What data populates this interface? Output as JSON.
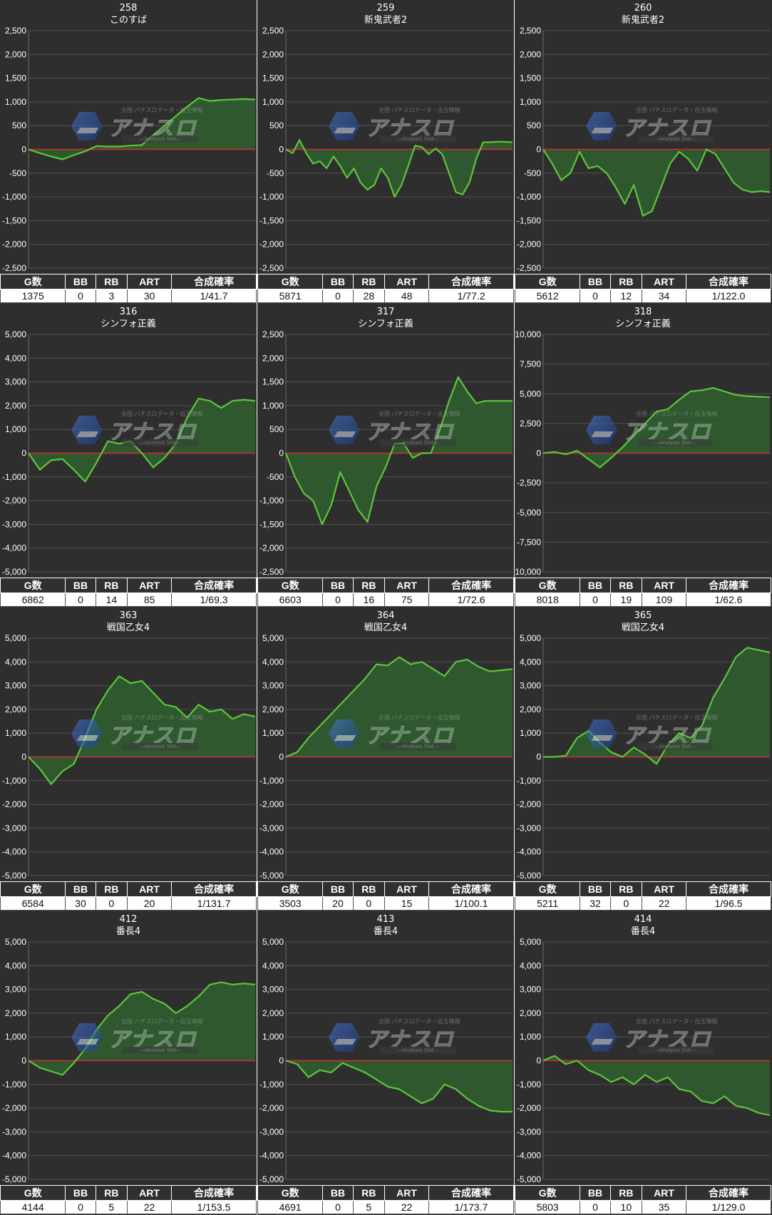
{
  "watermark": {
    "brand": "アナスロ",
    "sub": "全国 パチスロデータ・出玉情報",
    "tagline": "—Analysis Slot—"
  },
  "colors": {
    "background": "#2e2e2e",
    "grid": "#505050",
    "zero_line": "#d03030",
    "line": "#5cc63a",
    "fill": "#2f5f2f"
  },
  "table_headers": [
    "G数",
    "BB",
    "RB",
    "ART",
    "合成確率"
  ],
  "chart_data": [
    {
      "type": "area",
      "number": "258",
      "name": "このすば",
      "ylim": [
        -2500,
        2500
      ],
      "yticks": [
        "2,500",
        "2,000",
        "1,500",
        "1,000",
        "500",
        "0",
        "-500",
        "-1,000",
        "-1,500",
        "-2,000",
        "-2,500"
      ],
      "x": [
        0,
        5,
        10,
        15,
        20,
        25,
        30,
        35,
        40,
        45,
        50,
        55,
        60,
        65,
        70,
        75,
        80,
        85,
        90,
        95,
        100
      ],
      "y": [
        0,
        -80,
        -150,
        -210,
        -120,
        -40,
        70,
        60,
        60,
        80,
        90,
        300,
        500,
        700,
        900,
        1080,
        1020,
        1040,
        1050,
        1060,
        1050
      ],
      "stats": {
        "g": "1375",
        "bb": "0",
        "rb": "3",
        "art": "30",
        "prob": "1/41.7"
      }
    },
    {
      "type": "area",
      "number": "259",
      "name": "新鬼武者2",
      "ylim": [
        -2500,
        2500
      ],
      "yticks": [
        "2,500",
        "2,000",
        "1,500",
        "1,000",
        "500",
        "0",
        "-500",
        "-1,000",
        "-1,500",
        "-2,000",
        "-2,500"
      ],
      "x": [
        0,
        3,
        6,
        9,
        12,
        15,
        18,
        21,
        24,
        27,
        30,
        33,
        36,
        39,
        42,
        45,
        48,
        51,
        54,
        57,
        60,
        63,
        66,
        69,
        72,
        75,
        78,
        81,
        84,
        87,
        90,
        93,
        96,
        100
      ],
      "y": [
        0,
        -80,
        200,
        -80,
        -300,
        -250,
        -400,
        -150,
        -350,
        -600,
        -400,
        -700,
        -850,
        -750,
        -400,
        -600,
        -1000,
        -750,
        -350,
        80,
        50,
        -100,
        20,
        -100,
        -500,
        -900,
        -950,
        -700,
        -200,
        150,
        150,
        160,
        160,
        150
      ],
      "stats": {
        "g": "5871",
        "bb": "0",
        "rb": "28",
        "art": "48",
        "prob": "1/77.2"
      }
    },
    {
      "type": "area",
      "number": "260",
      "name": "新鬼武者2",
      "ylim": [
        -2500,
        2500
      ],
      "yticks": [
        "2,500",
        "2,000",
        "1,500",
        "1,000",
        "500",
        "0",
        "-500",
        "-1,000",
        "-1,500",
        "-2,000",
        "-2,500"
      ],
      "x": [
        0,
        4,
        8,
        12,
        16,
        20,
        24,
        28,
        32,
        36,
        40,
        44,
        48,
        52,
        56,
        60,
        64,
        68,
        72,
        76,
        80,
        84,
        88,
        92,
        96,
        100
      ],
      "y": [
        0,
        -300,
        -650,
        -500,
        -50,
        -400,
        -350,
        -500,
        -800,
        -1150,
        -750,
        -1400,
        -1300,
        -800,
        -300,
        -50,
        -200,
        -450,
        0,
        -100,
        -400,
        -700,
        -850,
        -900,
        -880,
        -900
      ],
      "stats": {
        "g": "5612",
        "bb": "0",
        "rb": "12",
        "art": "34",
        "prob": "1/122.0"
      }
    },
    {
      "type": "area",
      "number": "316",
      "name": "シンフォ正義",
      "ylim": [
        -5000,
        5000
      ],
      "yticks": [
        "5,000",
        "4,000",
        "3,000",
        "2,000",
        "1,000",
        "0",
        "-1,000",
        "-2,000",
        "-3,000",
        "-4,000",
        "-5,000"
      ],
      "x": [
        0,
        5,
        10,
        15,
        20,
        25,
        30,
        35,
        40,
        45,
        50,
        55,
        60,
        65,
        70,
        75,
        80,
        85,
        90,
        95,
        100
      ],
      "y": [
        0,
        -700,
        -300,
        -250,
        -700,
        -1200,
        -400,
        500,
        400,
        500,
        0,
        -600,
        -200,
        400,
        1500,
        2300,
        2200,
        1900,
        2200,
        2250,
        2200
      ],
      "stats": {
        "g": "6862",
        "bb": "0",
        "rb": "14",
        "art": "85",
        "prob": "1/69.3"
      }
    },
    {
      "type": "area",
      "number": "317",
      "name": "シンフォ正義",
      "ylim": [
        -2500,
        2500
      ],
      "yticks": [
        "2,500",
        "2,000",
        "1,500",
        "1,000",
        "500",
        "0",
        "-500",
        "-1,000",
        "-1,500",
        "-2,000",
        "-2,500"
      ],
      "x": [
        0,
        4,
        8,
        12,
        16,
        20,
        24,
        28,
        32,
        36,
        40,
        44,
        48,
        52,
        56,
        60,
        64,
        68,
        72,
        76,
        80,
        84,
        88,
        92,
        96,
        100
      ],
      "y": [
        0,
        -500,
        -850,
        -1000,
        -1500,
        -1100,
        -400,
        -800,
        -1200,
        -1450,
        -700,
        -300,
        200,
        200,
        -100,
        0,
        0,
        500,
        1100,
        1600,
        1300,
        1050,
        1100,
        1100,
        1100,
        1100
      ],
      "stats": {
        "g": "6603",
        "bb": "0",
        "rb": "16",
        "art": "75",
        "prob": "1/72.6"
      }
    },
    {
      "type": "area",
      "number": "318",
      "name": "シンフォ正義",
      "ylim": [
        -10000,
        10000
      ],
      "yticks": [
        "10,000",
        "7,500",
        "5,000",
        "2,500",
        "0",
        "-2,500",
        "-5,000",
        "-7,500",
        "-10,000"
      ],
      "x": [
        0,
        5,
        10,
        15,
        20,
        25,
        30,
        35,
        40,
        45,
        50,
        55,
        60,
        65,
        70,
        75,
        80,
        85,
        90,
        95,
        100
      ],
      "y": [
        0,
        100,
        -100,
        200,
        -500,
        -1200,
        -400,
        500,
        1500,
        2500,
        3500,
        3700,
        4500,
        5200,
        5300,
        5500,
        5200,
        4900,
        4800,
        4750,
        4700
      ],
      "stats": {
        "g": "8018",
        "bb": "0",
        "rb": "19",
        "art": "109",
        "prob": "1/62.6"
      }
    },
    {
      "type": "area",
      "number": "363",
      "name": "戦国乙女4",
      "ylim": [
        -5000,
        5000
      ],
      "yticks": [
        "5,000",
        "4,000",
        "3,000",
        "2,000",
        "1,000",
        "0",
        "-1,000",
        "-2,000",
        "-3,000",
        "-4,000",
        "-5,000"
      ],
      "x": [
        0,
        5,
        10,
        15,
        20,
        25,
        30,
        35,
        40,
        45,
        50,
        55,
        60,
        65,
        70,
        75,
        80,
        85,
        90,
        95,
        100
      ],
      "y": [
        0,
        -500,
        -1150,
        -600,
        -300,
        800,
        2000,
        2800,
        3400,
        3100,
        3200,
        2700,
        2200,
        2100,
        1650,
        2200,
        1900,
        2000,
        1600,
        1800,
        1700
      ],
      "stats": {
        "g": "6584",
        "bb": "30",
        "rb": "0",
        "art": "20",
        "prob": "1/131.7"
      }
    },
    {
      "type": "area",
      "number": "364",
      "name": "戦国乙女4",
      "ylim": [
        -5000,
        5000
      ],
      "yticks": [
        "5,000",
        "4,000",
        "3,000",
        "2,000",
        "1,000",
        "0",
        "-1,000",
        "-2,000",
        "-3,000",
        "-4,000",
        "-5,000"
      ],
      "x": [
        0,
        5,
        10,
        15,
        20,
        25,
        30,
        35,
        40,
        45,
        50,
        55,
        60,
        65,
        70,
        75,
        80,
        85,
        90,
        95,
        100
      ],
      "y": [
        0,
        200,
        800,
        1300,
        1800,
        2300,
        2800,
        3300,
        3900,
        3850,
        4200,
        3900,
        4000,
        3700,
        3400,
        4000,
        4100,
        3800,
        3600,
        3650,
        3700
      ],
      "stats": {
        "g": "3503",
        "bb": "20",
        "rb": "0",
        "art": "15",
        "prob": "1/100.1"
      }
    },
    {
      "type": "area",
      "number": "365",
      "name": "戦国乙女4",
      "ylim": [
        -5000,
        5000
      ],
      "yticks": [
        "5,000",
        "4,000",
        "3,000",
        "2,000",
        "1,000",
        "0",
        "-1,000",
        "-2,000",
        "-3,000",
        "-4,000",
        "-5,000"
      ],
      "x": [
        0,
        5,
        10,
        15,
        20,
        25,
        30,
        35,
        40,
        45,
        50,
        55,
        60,
        65,
        70,
        75,
        80,
        85,
        90,
        95,
        100
      ],
      "y": [
        0,
        0,
        50,
        800,
        1100,
        600,
        200,
        0,
        400,
        100,
        -300,
        500,
        1000,
        800,
        1300,
        2500,
        3300,
        4200,
        4600,
        4500,
        4400
      ],
      "stats": {
        "g": "5211",
        "bb": "32",
        "rb": "0",
        "art": "22",
        "prob": "1/96.5"
      }
    },
    {
      "type": "area",
      "number": "412",
      "name": "番長4",
      "ylim": [
        -5000,
        5000
      ],
      "yticks": [
        "5,000",
        "4,000",
        "3,000",
        "2,000",
        "1,000",
        "0",
        "-1,000",
        "-2,000",
        "-3,000",
        "-4,000",
        "-5,000"
      ],
      "x": [
        0,
        5,
        10,
        15,
        20,
        25,
        30,
        35,
        40,
        45,
        50,
        55,
        60,
        65,
        70,
        75,
        80,
        85,
        90,
        95,
        100
      ],
      "y": [
        0,
        -300,
        -450,
        -600,
        -100,
        500,
        1300,
        1900,
        2300,
        2800,
        2900,
        2600,
        2400,
        2000,
        2300,
        2700,
        3200,
        3300,
        3200,
        3250,
        3200
      ],
      "stats": {
        "g": "4144",
        "bb": "0",
        "rb": "5",
        "art": "22",
        "prob": "1/153.5"
      }
    },
    {
      "type": "area",
      "number": "413",
      "name": "番長4",
      "ylim": [
        -5000,
        5000
      ],
      "yticks": [
        "5,000",
        "4,000",
        "3,000",
        "2,000",
        "1,000",
        "0",
        "-1,000",
        "-2,000",
        "-3,000",
        "-4,000",
        "-5,000"
      ],
      "x": [
        0,
        5,
        10,
        15,
        20,
        25,
        30,
        35,
        40,
        45,
        50,
        55,
        60,
        65,
        70,
        75,
        80,
        85,
        90,
        95,
        100
      ],
      "y": [
        0,
        -150,
        -700,
        -400,
        -500,
        -100,
        -300,
        -500,
        -800,
        -1100,
        -1200,
        -1500,
        -1800,
        -1600,
        -1000,
        -1200,
        -1600,
        -1900,
        -2100,
        -2150,
        -2150
      ],
      "stats": {
        "g": "4691",
        "bb": "0",
        "rb": "5",
        "art": "22",
        "prob": "1/173.7"
      }
    },
    {
      "type": "area",
      "number": "414",
      "name": "番長4",
      "ylim": [
        -5000,
        5000
      ],
      "yticks": [
        "5,000",
        "4,000",
        "3,000",
        "2,000",
        "1,000",
        "0",
        "-1,000",
        "-2,000",
        "-3,000",
        "-4,000",
        "-5,000"
      ],
      "x": [
        0,
        5,
        10,
        15,
        20,
        25,
        30,
        35,
        40,
        45,
        50,
        55,
        60,
        65,
        70,
        75,
        80,
        85,
        90,
        95,
        100
      ],
      "y": [
        0,
        200,
        -150,
        0,
        -400,
        -600,
        -900,
        -700,
        -1000,
        -600,
        -900,
        -700,
        -1200,
        -1300,
        -1700,
        -1800,
        -1500,
        -1900,
        -2000,
        -2200,
        -2300
      ],
      "stats": {
        "g": "5803",
        "bb": "0",
        "rb": "10",
        "art": "35",
        "prob": "1/129.0"
      }
    }
  ]
}
